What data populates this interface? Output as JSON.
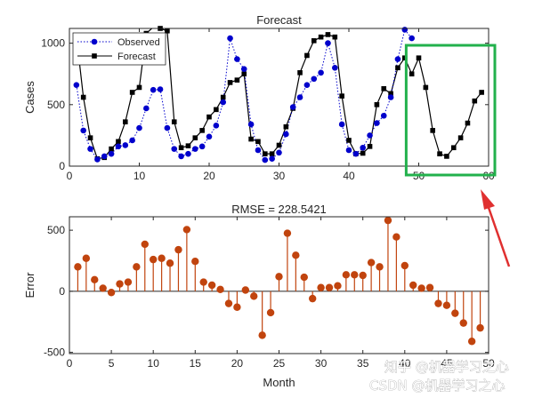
{
  "colors": {
    "observed": "#0000cc",
    "forecast": "#000000",
    "error_stem": "#c1440e",
    "highlight_box": "#22b14c",
    "arrow": "#e03030"
  },
  "watermark": {
    "line1": "知乎 @机器学习之心",
    "line2": "CSDN @机器学习之心"
  },
  "chart_data": [
    {
      "type": "line",
      "title": "Forecast",
      "xlabel": "",
      "ylabel": "Cases",
      "xlim": [
        0,
        60
      ],
      "ylim": [
        0,
        1120
      ],
      "xticks": [
        "0",
        "10",
        "20",
        "30",
        "40",
        "50",
        "60"
      ],
      "yticks": [
        "0",
        "500",
        "1000"
      ],
      "legend": {
        "placement": "top-left",
        "entries": [
          "Observed",
          "Forecast"
        ]
      },
      "series": [
        {
          "name": "Observed",
          "style": "dotted-circle",
          "x": [
            1,
            2,
            3,
            4,
            5,
            6,
            7,
            8,
            9,
            10,
            11,
            12,
            13,
            14,
            15,
            16,
            17,
            18,
            19,
            20,
            21,
            22,
            23,
            24,
            25,
            26,
            27,
            28,
            29,
            30,
            31,
            32,
            33,
            34,
            35,
            36,
            37,
            38,
            39,
            40,
            41,
            42,
            43,
            44,
            45,
            46,
            47,
            48,
            49
          ],
          "y": [
            660,
            290,
            140,
            55,
            80,
            100,
            160,
            170,
            210,
            310,
            470,
            620,
            625,
            310,
            140,
            80,
            100,
            140,
            160,
            240,
            330,
            520,
            1040,
            870,
            790,
            340,
            130,
            50,
            60,
            110,
            260,
            480,
            560,
            660,
            710,
            760,
            1000,
            800,
            340,
            130,
            100,
            150,
            250,
            350,
            410,
            560,
            870,
            1110,
            1040
          ]
        },
        {
          "name": "Forecast",
          "style": "solid-square",
          "x": [
            1,
            2,
            3,
            4,
            5,
            6,
            7,
            8,
            9,
            10,
            11,
            12,
            13,
            14,
            15,
            16,
            17,
            18,
            19,
            20,
            21,
            22,
            23,
            24,
            25,
            26,
            27,
            28,
            29,
            30,
            31,
            32,
            33,
            34,
            35,
            36,
            37,
            38,
            39,
            40,
            41,
            42,
            43,
            44,
            45,
            46,
            47,
            48,
            49,
            50,
            51,
            52,
            53,
            54,
            55,
            56,
            57,
            58,
            59
          ],
          "y": [
            1060,
            560,
            230,
            60,
            70,
            140,
            200,
            360,
            600,
            640,
            1080,
            1130,
            1120,
            1100,
            360,
            150,
            165,
            230,
            290,
            400,
            460,
            560,
            680,
            700,
            750,
            220,
            200,
            100,
            100,
            170,
            320,
            470,
            760,
            900,
            1020,
            1050,
            1070,
            1050,
            570,
            210,
            100,
            105,
            160,
            500,
            630,
            590,
            800,
            880,
            750,
            880,
            640,
            290,
            100,
            80,
            150,
            230,
            350,
            530,
            600
          ]
        }
      ]
    },
    {
      "type": "stem",
      "title": "RMSE = 228.5421",
      "xlabel": "Month",
      "ylabel": "Error",
      "xlim": [
        0,
        50
      ],
      "ylim": [
        -510,
        610
      ],
      "xticks": [
        "0",
        "5",
        "10",
        "15",
        "20",
        "25",
        "30",
        "35",
        "40",
        "45",
        "50"
      ],
      "yticks": [
        "-500",
        "0",
        "500"
      ],
      "x": [
        1,
        2,
        3,
        4,
        5,
        6,
        7,
        8,
        9,
        10,
        11,
        12,
        13,
        14,
        15,
        16,
        17,
        18,
        19,
        20,
        21,
        22,
        23,
        24,
        25,
        26,
        27,
        28,
        29,
        30,
        31,
        32,
        33,
        34,
        35,
        36,
        37,
        38,
        39,
        40,
        41,
        42,
        43,
        44,
        45,
        46,
        47,
        48,
        49
      ],
      "y": [
        200,
        270,
        95,
        25,
        -10,
        60,
        75,
        200,
        385,
        260,
        270,
        230,
        340,
        505,
        245,
        75,
        50,
        15,
        -100,
        -130,
        10,
        -40,
        -360,
        -175,
        120,
        475,
        295,
        115,
        -60,
        30,
        30,
        45,
        135,
        135,
        130,
        235,
        200,
        580,
        445,
        210,
        50,
        25,
        30,
        -100,
        -115,
        -180,
        -260,
        -410,
        -300
      ]
    }
  ]
}
